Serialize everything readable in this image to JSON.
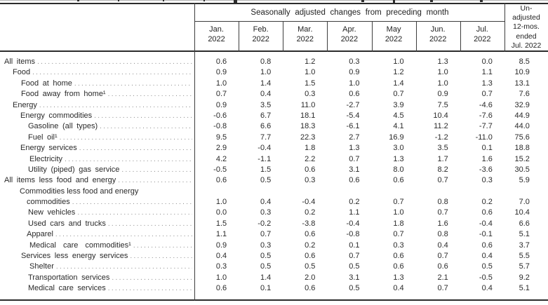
{
  "table": {
    "spanner": "Seasonally adjusted changes from preceding month",
    "unadjusted_header_lines": [
      "Un-",
      "adjusted",
      "12-mos.",
      "ended",
      "Jul. 2022"
    ],
    "month_headers": [
      {
        "month": "Jan.",
        "year": "2022"
      },
      {
        "month": "Feb.",
        "year": "2022"
      },
      {
        "month": "Mar.",
        "year": "2022"
      },
      {
        "month": "Apr.",
        "year": "2022"
      },
      {
        "month": "May",
        "year": "2022"
      },
      {
        "month": "Jun.",
        "year": "2022"
      },
      {
        "month": "Jul.",
        "year": "2022"
      }
    ],
    "rows": [
      {
        "label": "All items",
        "indent": 6,
        "values": [
          "0.6",
          "0.8",
          "1.2",
          "0.3",
          "1.0",
          "1.3",
          "0.0"
        ],
        "unadjusted": "8.5"
      },
      {
        "label": "Food",
        "indent": 18,
        "values": [
          "0.9",
          "1.0",
          "1.0",
          "0.9",
          "1.2",
          "1.0",
          "1.1"
        ],
        "unadjusted": "10.9"
      },
      {
        "label": "Food at home",
        "indent": 30,
        "values": [
          "1.0",
          "1.4",
          "1.5",
          "1.0",
          "1.4",
          "1.0",
          "1.3"
        ],
        "unadjusted": "13.1"
      },
      {
        "label": "Food away from home¹",
        "indent": 30,
        "values": [
          "0.7",
          "0.4",
          "0.3",
          "0.6",
          "0.7",
          "0.9",
          "0.7"
        ],
        "unadjusted": "7.6"
      },
      {
        "label": "Energy",
        "indent": 18,
        "values": [
          "0.9",
          "3.5",
          "11.0",
          "-2.7",
          "3.9",
          "7.5",
          "-4.6"
        ],
        "unadjusted": "32.9"
      },
      {
        "label": "Energy commodities",
        "indent": 29,
        "values": [
          "-0.6",
          "6.7",
          "18.1",
          "-5.4",
          "4.5",
          "10.4",
          "-7.6"
        ],
        "unadjusted": "44.9"
      },
      {
        "label": "Gasoline (all types)",
        "indent": 40,
        "values": [
          "-0.8",
          "6.6",
          "18.3",
          "-6.1",
          "4.1",
          "11.2",
          "-7.7"
        ],
        "unadjusted": "44.0"
      },
      {
        "label": "Fuel oil¹",
        "indent": 40,
        "values": [
          "9.5",
          "7.7",
          "22.3",
          "2.7",
          "16.9",
          "-1.2",
          "-11.0"
        ],
        "unadjusted": "75.6"
      },
      {
        "label": "Energy services",
        "indent": 29,
        "values": [
          "2.9",
          "-0.4",
          "1.8",
          "1.3",
          "3.0",
          "3.5",
          "0.1"
        ],
        "unadjusted": "18.8"
      },
      {
        "label": "Electricity",
        "indent": 42,
        "values": [
          "4.2",
          "-1.1",
          "2.2",
          "0.7",
          "1.3",
          "1.7",
          "1.6"
        ],
        "unadjusted": "15.2"
      },
      {
        "label": "Utility (piped) gas service",
        "indent": 40,
        "values": [
          "-0.5",
          "1.5",
          "0.6",
          "3.1",
          "8.0",
          "8.2",
          "-3.6"
        ],
        "unadjusted": "30.5"
      },
      {
        "label": "All items less food and energy",
        "indent": 6,
        "values": [
          "0.6",
          "0.5",
          "0.3",
          "0.6",
          "0.6",
          "0.7",
          "0.3"
        ],
        "unadjusted": "5.9"
      },
      {
        "label": "Commodities less food and energy",
        "label2": "commodities",
        "indent": 28,
        "values": [
          "1.0",
          "0.4",
          "-0.4",
          "0.2",
          "0.7",
          "0.8",
          "0.2"
        ],
        "unadjusted": "7.0"
      },
      {
        "label": "New vehicles",
        "indent": 40,
        "values": [
          "0.0",
          "0.3",
          "0.2",
          "1.1",
          "1.0",
          "0.7",
          "0.6"
        ],
        "unadjusted": "10.4"
      },
      {
        "label": "Used cars and trucks",
        "indent": 40,
        "values": [
          "1.5",
          "-0.2",
          "-3.8",
          "-0.4",
          "1.8",
          "1.6",
          "-0.4"
        ],
        "unadjusted": "6.6"
      },
      {
        "label": "Apparel",
        "indent": 38,
        "values": [
          "1.1",
          "0.7",
          "0.6",
          "-0.8",
          "0.7",
          "0.8",
          "-0.1"
        ],
        "unadjusted": "5.1"
      },
      {
        "label": "Medical care commodities¹",
        "indent": 42,
        "spread": true,
        "values": [
          "0.9",
          "0.3",
          "0.2",
          "0.1",
          "0.3",
          "0.4",
          "0.6"
        ],
        "unadjusted": "3.7"
      },
      {
        "label": "Services less energy services",
        "indent": 30,
        "values": [
          "0.4",
          "0.5",
          "0.6",
          "0.7",
          "0.6",
          "0.7",
          "0.4"
        ],
        "unadjusted": "5.5"
      },
      {
        "label": "Shelter",
        "indent": 42,
        "values": [
          "0.3",
          "0.5",
          "0.5",
          "0.5",
          "0.6",
          "0.6",
          "0.5"
        ],
        "unadjusted": "5.7"
      },
      {
        "label": "Transportation services",
        "indent": 40,
        "values": [
          "1.0",
          "1.4",
          "2.0",
          "3.1",
          "1.3",
          "2.1",
          "-0.5"
        ],
        "unadjusted": "9.2"
      },
      {
        "label": "Medical care services",
        "indent": 40,
        "values": [
          "0.6",
          "0.1",
          "0.6",
          "0.5",
          "0.4",
          "0.7",
          "0.4"
        ],
        "unadjusted": "5.1"
      }
    ]
  }
}
